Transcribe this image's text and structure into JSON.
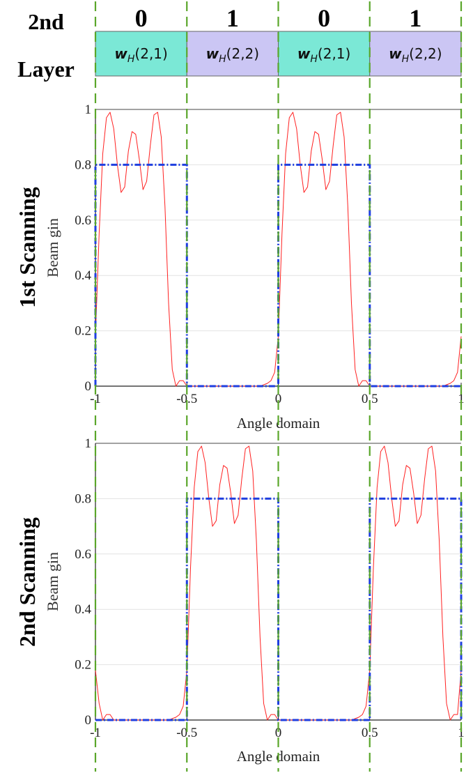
{
  "layer_label": [
    "2nd",
    "Layer"
  ],
  "row_titles": [
    "1st Scanning",
    "2nd Scanning"
  ],
  "codebook_cells": [
    {
      "bit": "0",
      "w": "w",
      "sub": "H",
      "idx": "(2,1)",
      "color": "#7be8d6"
    },
    {
      "bit": "1",
      "w": "w",
      "sub": "H",
      "idx": "(2,2)",
      "color": "#cbc6f4"
    },
    {
      "bit": "0",
      "w": "w",
      "sub": "H",
      "idx": "(2,1)",
      "color": "#7be8d6"
    },
    {
      "bit": "1",
      "w": "w",
      "sub": "H",
      "idx": "(2,2)",
      "color": "#cbc6f4"
    }
  ],
  "colors": {
    "actual_beam": "#ff2020",
    "ideal_beam": "#1f3fe0",
    "boundary": "#5aa62a",
    "axis": "#222222"
  },
  "chart_data": [
    {
      "type": "line",
      "title": "",
      "xlabel": "Angle domain",
      "ylabel": "Beam gin",
      "xlim": [
        -1,
        1
      ],
      "ylim": [
        0,
        1
      ],
      "xticks": [
        -1,
        -0.5,
        0,
        0.5,
        1
      ],
      "xtick_labels": [
        "-1",
        "-0.5",
        "0",
        "0.5",
        "1"
      ],
      "yticks": [
        0,
        0.2,
        0.4,
        0.6,
        0.8,
        1
      ],
      "ytick_labels": [
        "0",
        "0.2",
        "0.4",
        "0.6",
        "0.8",
        "1"
      ],
      "grid": "horizontal",
      "boundaries": [
        -1,
        -0.5,
        0,
        0.5,
        1
      ],
      "series": [
        {
          "style": "solid",
          "x": [
            -1,
            -0.98,
            -0.96,
            -0.94,
            -0.92,
            -0.9,
            -0.88,
            -0.86,
            -0.84,
            -0.82,
            -0.8,
            -0.78,
            -0.76,
            -0.74,
            -0.72,
            -0.7,
            -0.68,
            -0.66,
            -0.64,
            -0.62,
            -0.6,
            -0.58,
            -0.56,
            -0.54,
            -0.52,
            -0.5,
            -0.48,
            -0.46,
            -0.44,
            -0.42,
            -0.4,
            -0.3,
            -0.2,
            -0.1,
            -0.06,
            -0.04,
            -0.02,
            0,
            0.02,
            0.04,
            0.06,
            0.08,
            0.1,
            0.12,
            0.14,
            0.16,
            0.18,
            0.2,
            0.22,
            0.24,
            0.26,
            0.28,
            0.3,
            0.32,
            0.34,
            0.36,
            0.38,
            0.4,
            0.42,
            0.44,
            0.46,
            0.48,
            0.5,
            0.52,
            0.54,
            0.56,
            0.58,
            0.6,
            0.7,
            0.8,
            0.9,
            0.94,
            0.96,
            0.98,
            1
          ],
          "y": [
            0.18,
            0.55,
            0.84,
            0.97,
            0.99,
            0.93,
            0.8,
            0.7,
            0.72,
            0.85,
            0.92,
            0.91,
            0.82,
            0.71,
            0.74,
            0.87,
            0.98,
            0.99,
            0.9,
            0.65,
            0.3,
            0.06,
            0.0,
            0.02,
            0.02,
            0.0,
            0.0,
            0.0,
            0.0,
            0.0,
            0.0,
            0.0,
            0.0,
            0.0,
            0.01,
            0.02,
            0.05,
            0.18,
            0.55,
            0.84,
            0.97,
            0.99,
            0.93,
            0.8,
            0.7,
            0.72,
            0.85,
            0.92,
            0.91,
            0.82,
            0.71,
            0.74,
            0.87,
            0.98,
            0.99,
            0.9,
            0.65,
            0.3,
            0.06,
            0.0,
            0.02,
            0.02,
            0.0,
            0.0,
            0.0,
            0.0,
            0.0,
            0.0,
            0.0,
            0.0,
            0.0,
            0.01,
            0.02,
            0.05,
            0.18
          ]
        },
        {
          "style": "dash-dot",
          "x": [
            -1,
            -1,
            -0.5,
            -0.5,
            0,
            0,
            0.5,
            0.5,
            1
          ],
          "y": [
            0,
            0.8,
            0.8,
            0,
            0,
            0.8,
            0.8,
            0,
            0
          ]
        }
      ]
    },
    {
      "type": "line",
      "title": "",
      "xlabel": "Angle domain",
      "ylabel": "Beam gin",
      "xlim": [
        -1,
        1
      ],
      "ylim": [
        0,
        1
      ],
      "xticks": [
        -1,
        -0.5,
        0,
        0.5,
        1
      ],
      "xtick_labels": [
        "-1",
        "-0.5",
        "0",
        "0.5",
        "1"
      ],
      "yticks": [
        0,
        0.2,
        0.4,
        0.6,
        0.8,
        1
      ],
      "ytick_labels": [
        "0",
        "0.2",
        "0.4",
        "0.6",
        "0.8",
        "1"
      ],
      "grid": "horizontal",
      "boundaries": [
        -1,
        -0.5,
        0,
        0.5,
        1
      ],
      "series": [
        {
          "style": "solid",
          "x": [
            -1,
            -0.98,
            -0.96,
            -0.94,
            -0.92,
            -0.9,
            -0.8,
            -0.7,
            -0.6,
            -0.56,
            -0.54,
            -0.52,
            -0.5,
            -0.48,
            -0.46,
            -0.44,
            -0.42,
            -0.4,
            -0.38,
            -0.36,
            -0.34,
            -0.32,
            -0.3,
            -0.28,
            -0.26,
            -0.24,
            -0.22,
            -0.2,
            -0.18,
            -0.16,
            -0.14,
            -0.12,
            -0.1,
            -0.08,
            -0.06,
            -0.04,
            -0.02,
            0,
            0.02,
            0.04,
            0.06,
            0.08,
            0.1,
            0.2,
            0.3,
            0.4,
            0.44,
            0.46,
            0.48,
            0.5,
            0.52,
            0.54,
            0.56,
            0.58,
            0.6,
            0.62,
            0.64,
            0.66,
            0.68,
            0.7,
            0.72,
            0.74,
            0.76,
            0.78,
            0.8,
            0.82,
            0.84,
            0.86,
            0.88,
            0.9,
            0.92,
            0.94,
            0.96,
            0.98,
            1
          ],
          "y": [
            0.18,
            0.06,
            0.0,
            0.02,
            0.02,
            0.0,
            0.0,
            0.0,
            0.0,
            0.01,
            0.02,
            0.05,
            0.18,
            0.55,
            0.84,
            0.97,
            0.99,
            0.93,
            0.8,
            0.7,
            0.72,
            0.85,
            0.92,
            0.91,
            0.82,
            0.71,
            0.74,
            0.87,
            0.98,
            0.99,
            0.9,
            0.65,
            0.3,
            0.06,
            0.0,
            0.02,
            0.02,
            0.0,
            0.0,
            0.0,
            0.0,
            0.0,
            0.0,
            0.0,
            0.0,
            0.0,
            0.01,
            0.02,
            0.05,
            0.18,
            0.55,
            0.84,
            0.97,
            0.99,
            0.93,
            0.8,
            0.7,
            0.72,
            0.85,
            0.92,
            0.91,
            0.82,
            0.71,
            0.74,
            0.87,
            0.98,
            0.99,
            0.9,
            0.65,
            0.3,
            0.06,
            0.0,
            0.02,
            0.02,
            0.18
          ]
        },
        {
          "style": "dash-dot",
          "x": [
            -1,
            -0.5,
            -0.5,
            0,
            0,
            0.5,
            0.5,
            1,
            1
          ],
          "y": [
            0,
            0,
            0.8,
            0.8,
            0,
            0,
            0.8,
            0.8,
            0
          ]
        }
      ]
    }
  ]
}
